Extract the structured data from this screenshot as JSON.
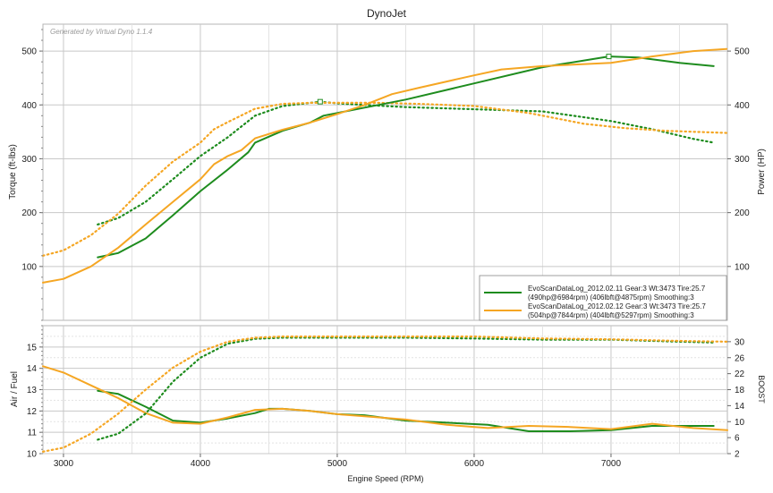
{
  "title": "DynoJet",
  "credit": "Generated by Virtual Dyno 1.1.4",
  "colors": {
    "green": "#1e8c1e",
    "orange": "#f5a623",
    "grid": "#c8c8c8",
    "minor_grid": "#e3e3e3"
  },
  "chart_data": [
    {
      "type": "line",
      "panel": "top",
      "xlabel": "Engine Speed (RPM)",
      "ylabel": "Torque (ft-lbs)",
      "y2label": "Power (HP)",
      "xlim": [
        2850,
        7850
      ],
      "ylim": [
        0,
        550
      ],
      "y2lim": [
        0,
        550
      ],
      "x_ticks": [
        3000,
        4000,
        5000,
        6000,
        7000
      ],
      "y_ticks": [
        100,
        200,
        300,
        400,
        500
      ],
      "y2_ticks": [
        100,
        200,
        300,
        400,
        500
      ],
      "grid": true,
      "legend_position": "bottom-right",
      "legend": [
        {
          "line1": "EvoScanDataLog_2012.02.11 Gear:3 Wt:3473 Tire:25.7",
          "line2": "(490hp@6984rpm) (406lbft@4875rpm) Smoothing:3",
          "color": "#1e8c1e"
        },
        {
          "line1": "EvoScanDataLog_2012.02.12 Gear:3 Wt:3473 Tire:25.7",
          "line2": "(504hp@7844rpm) (404lbft@5297rpm) Smoothing:3",
          "color": "#f5a623"
        }
      ],
      "series": [
        {
          "quantity": "torque",
          "style": "dotted",
          "color": "#1e8c1e",
          "x": [
            3250,
            3400,
            3600,
            3800,
            4000,
            4200,
            4400,
            4600,
            4875,
            5000,
            5200,
            5500,
            6000,
            6500,
            7000,
            7300,
            7600,
            7750
          ],
          "y": [
            178,
            190,
            220,
            262,
            305,
            340,
            380,
            398,
            406,
            403,
            400,
            396,
            392,
            388,
            370,
            355,
            337,
            330
          ]
        },
        {
          "quantity": "torque",
          "style": "dotted",
          "color": "#f5a623",
          "x": [
            2850,
            3000,
            3200,
            3400,
            3600,
            3800,
            4000,
            4100,
            4200,
            4400,
            4600,
            4800,
            5000,
            5297,
            5600,
            6000,
            6400,
            6800,
            7100,
            7400,
            7850
          ],
          "y": [
            120,
            130,
            158,
            198,
            250,
            295,
            330,
            355,
            368,
            393,
            402,
            404,
            404,
            404,
            402,
            398,
            385,
            365,
            357,
            352,
            348
          ]
        },
        {
          "quantity": "power",
          "style": "solid",
          "color": "#1e8c1e",
          "x": [
            3250,
            3400,
            3600,
            3800,
            4000,
            4200,
            4350,
            4400,
            4600,
            4800,
            4900,
            5000,
            5200,
            5500,
            6000,
            6500,
            6984,
            7200,
            7500,
            7750
          ],
          "y": [
            117,
            125,
            152,
            195,
            240,
            280,
            312,
            330,
            352,
            367,
            380,
            385,
            395,
            410,
            440,
            470,
            490,
            488,
            478,
            472
          ]
        },
        {
          "quantity": "power",
          "style": "solid",
          "color": "#f5a623",
          "x": [
            2850,
            3000,
            3200,
            3400,
            3600,
            3800,
            4000,
            4100,
            4200,
            4300,
            4400,
            4600,
            4800,
            5000,
            5200,
            5400,
            5600,
            6000,
            6200,
            6500,
            7000,
            7300,
            7600,
            7844
          ],
          "y": [
            70,
            77,
            100,
            135,
            178,
            220,
            262,
            290,
            305,
            316,
            338,
            354,
            367,
            383,
            400,
            420,
            432,
            455,
            466,
            472,
            478,
            490,
            500,
            504
          ]
        }
      ]
    },
    {
      "type": "line",
      "panel": "bottom",
      "xlabel": "Engine Speed (RPM)",
      "ylabel": "Air / Fuel",
      "y2label": "BOOST",
      "xlim": [
        2850,
        7850
      ],
      "ylim": [
        10,
        16
      ],
      "y2lim": [
        2,
        34
      ],
      "x_ticks": [
        3000,
        4000,
        5000,
        6000,
        7000
      ],
      "x_tick_labels": [
        "3000",
        "4000",
        "5000",
        "6000",
        "7000"
      ],
      "y_ticks": [
        10,
        11,
        12,
        13,
        14,
        15
      ],
      "y2_ticks": [
        2,
        6,
        10,
        14,
        18,
        22,
        26,
        30
      ],
      "grid": true,
      "series": [
        {
          "quantity": "air_fuel",
          "style": "solid",
          "color": "#1e8c1e",
          "x": [
            3250,
            3400,
            3600,
            3800,
            4000,
            4200,
            4400,
            4500,
            4600,
            4800,
            5000,
            5200,
            5500,
            5800,
            6100,
            6400,
            6700,
            7000,
            7300,
            7750
          ],
          "y": [
            12.95,
            12.8,
            12.2,
            11.55,
            11.45,
            11.65,
            11.9,
            12.1,
            12.1,
            12.0,
            11.85,
            11.8,
            11.55,
            11.45,
            11.35,
            11.05,
            11.05,
            11.1,
            11.3,
            11.3
          ]
        },
        {
          "quantity": "air_fuel",
          "style": "solid",
          "color": "#f5a623",
          "x": [
            2850,
            3000,
            3200,
            3400,
            3600,
            3800,
            4000,
            4200,
            4400,
            4600,
            4800,
            5000,
            5200,
            5500,
            5800,
            6100,
            6400,
            6700,
            7000,
            7300,
            7600,
            7850
          ],
          "y": [
            14.1,
            13.8,
            13.2,
            12.6,
            11.9,
            11.45,
            11.4,
            11.7,
            12.05,
            12.1,
            12.0,
            11.85,
            11.75,
            11.6,
            11.35,
            11.2,
            11.3,
            11.25,
            11.15,
            11.4,
            11.2,
            11.1
          ]
        },
        {
          "quantity": "boost",
          "style": "dotted",
          "color": "#1e8c1e",
          "x": [
            3250,
            3400,
            3600,
            3800,
            4000,
            4200,
            4400,
            4600,
            5000,
            5500,
            6000,
            6500,
            7000,
            7500,
            7750
          ],
          "y": [
            5.5,
            7,
            12,
            20,
            26,
            29.5,
            30.7,
            31,
            31,
            31,
            30.8,
            30.5,
            30.5,
            30,
            29.8
          ]
        },
        {
          "quantity": "boost",
          "style": "dotted",
          "color": "#f5a623",
          "x": [
            2850,
            3000,
            3200,
            3400,
            3600,
            3800,
            4000,
            4200,
            4400,
            4600,
            5000,
            5500,
            6000,
            6500,
            7000,
            7500,
            7850
          ],
          "y": [
            2.5,
            3.5,
            7,
            12,
            18,
            23.5,
            27.5,
            30,
            31,
            31.3,
            31.3,
            31.3,
            31.3,
            30.8,
            30.6,
            30.2,
            30
          ]
        }
      ]
    }
  ]
}
